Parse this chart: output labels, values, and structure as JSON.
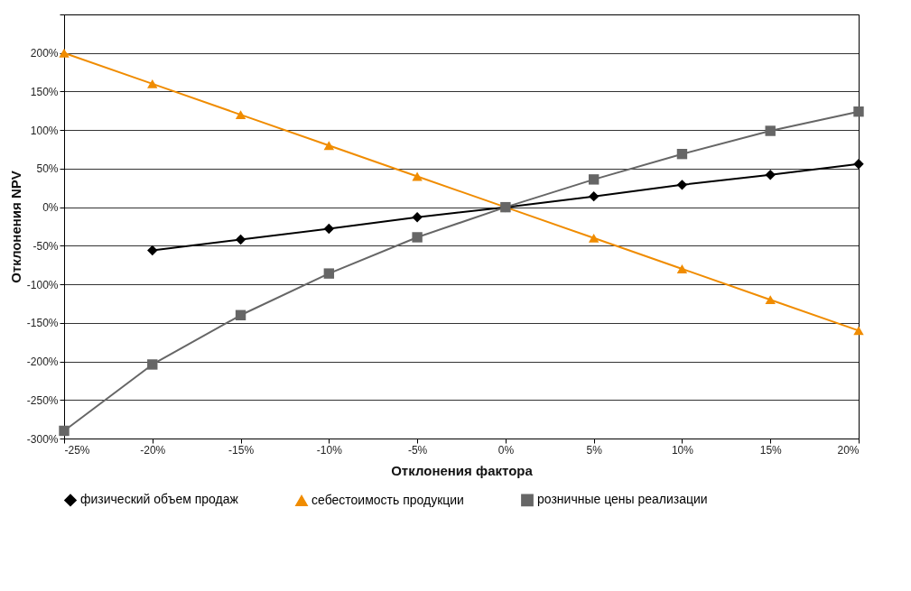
{
  "chart_data": {
    "type": "line",
    "xlabel": "Отклонения фактора",
    "ylabel": "Отклонения NPV",
    "x": [
      -25,
      -20,
      -15,
      -10,
      -5,
      0,
      5,
      10,
      15,
      20
    ],
    "series": [
      {
        "name": "физический объем продаж",
        "color": "#000000",
        "marker": "diamond",
        "values": [
          null,
          -56,
          -42,
          -28,
          -13,
          0,
          14,
          29,
          42,
          56
        ]
      },
      {
        "name": "себестоимость продукции",
        "color": "#f08c00",
        "marker": "triangle",
        "values": [
          200,
          160,
          120,
          80,
          40,
          0,
          -40,
          -80,
          -120,
          -160
        ]
      },
      {
        "name": "розничные цены реализации",
        "color": "#666666",
        "marker": "square",
        "values": [
          -290,
          -204,
          -140,
          -86,
          -39,
          0,
          36,
          69,
          99,
          124
        ]
      }
    ],
    "xlim": [
      -25,
      20
    ],
    "xticks": [
      {
        "value": -25,
        "label": "-25%"
      },
      {
        "value": -20,
        "label": "-20%"
      },
      {
        "value": -15,
        "label": "-15%"
      },
      {
        "value": -10,
        "label": "-10%"
      },
      {
        "value": -5,
        "label": "-5%"
      },
      {
        "value": 0,
        "label": "0%"
      },
      {
        "value": 5,
        "label": "5%"
      },
      {
        "value": 10,
        "label": "10%"
      },
      {
        "value": 15,
        "label": "15%"
      },
      {
        "value": 20,
        "label": "20%"
      }
    ],
    "ylim": [
      -300,
      250
    ],
    "yticks": [
      {
        "value": -300,
        "label": "-300%"
      },
      {
        "value": -250,
        "label": "-250%"
      },
      {
        "value": -200,
        "label": "-200%"
      },
      {
        "value": -150,
        "label": "-150%"
      },
      {
        "value": -100,
        "label": "-100%"
      },
      {
        "value": -50,
        "label": "-50%"
      },
      {
        "value": 0,
        "label": "0%"
      },
      {
        "value": 50,
        "label": "50%"
      },
      {
        "value": 100,
        "label": "100%"
      },
      {
        "value": 150,
        "label": "150%"
      },
      {
        "value": 200,
        "label": "200%"
      },
      {
        "value": 250,
        "label": null
      }
    ],
    "grid": "y",
    "legend": "bottom",
    "line_style": "solid"
  }
}
